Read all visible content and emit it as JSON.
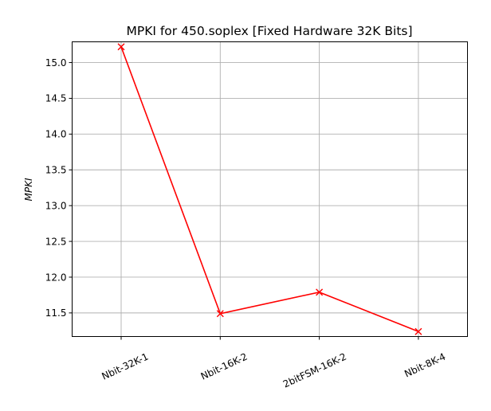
{
  "chart_data": {
    "type": "line",
    "title": "MPKI for 450.soplex [Fixed Hardware 32K Bits]",
    "xlabel": "",
    "ylabel": "MPKI",
    "categories": [
      "Nbit-32K-1",
      "Nbit-16K-2",
      "2bitFSM-16K-2",
      "Nbit-8K-4"
    ],
    "series": [
      {
        "values": [
          15.22,
          11.49,
          11.79,
          11.24
        ]
      }
    ],
    "yticks": [
      "11.5",
      "12.0",
      "12.5",
      "13.0",
      "13.5",
      "14.0",
      "14.5",
      "15.0"
    ],
    "ylim": [
      11.17,
      15.29
    ],
    "grid": true,
    "line_color": "#ff0000",
    "marker": "x"
  }
}
